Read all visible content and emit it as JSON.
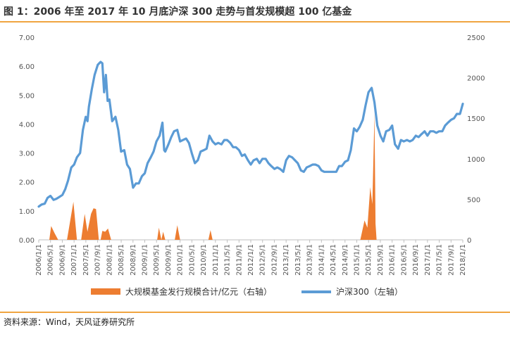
{
  "header": {
    "title": "图 1：2006 年至 2017 年 10 月底沪深 300 走势与首发规模超 100 亿基金"
  },
  "footer": {
    "source": "资料来源：Wind，天风证券研究所"
  },
  "colors": {
    "hs300": "#5b9bd5",
    "fund": "#ed7d31",
    "accent_rule": "#f0a540",
    "axis": "#bfbfbf"
  },
  "chart_data": {
    "type": "line",
    "title": "",
    "left_axis": {
      "ylim": [
        0,
        7
      ],
      "ticks": [
        "0.00",
        "1.00",
        "2.00",
        "3.00",
        "4.00",
        "5.00",
        "6.00",
        "7.00"
      ]
    },
    "right_axis": {
      "ylim": [
        0,
        2500
      ],
      "ticks": [
        "0",
        "500",
        "1000",
        "1500",
        "2000",
        "2500"
      ]
    },
    "x_range": [
      2006.0,
      2018.0
    ],
    "x_tick_labels": [
      "2006/1/1",
      "2006/5/1",
      "2006/9/1",
      "2007/1/1",
      "2007/5/1",
      "2007/9/1",
      "2008/1/1",
      "2008/5/1",
      "2008/9/1",
      "2009/1/1",
      "2009/5/1",
      "2009/9/1",
      "2010/1/1",
      "2010/5/1",
      "2010/9/1",
      "2011/1/1",
      "2011/5/1",
      "2011/9/1",
      "2012/1/1",
      "2012/5/1",
      "2012/9/1",
      "2013/1/1",
      "2013/5/1",
      "2013/9/1",
      "2014/1/1",
      "2014/5/1",
      "2014/9/1",
      "2015/1/1",
      "2015/5/1",
      "2015/9/1",
      "2016/1/1",
      "2016/5/1",
      "2016/9/1",
      "2017/1/1",
      "2017/5/1",
      "2017/9/1",
      "2018/1/1"
    ],
    "series": [
      {
        "name": "大规模基金发行规模合计/亿元（右轴）",
        "type": "area",
        "axis": "right",
        "points": [
          [
            2006.0,
            0
          ],
          [
            2006.3,
            0
          ],
          [
            2006.35,
            170
          ],
          [
            2006.45,
            80
          ],
          [
            2006.55,
            0
          ],
          [
            2006.8,
            0
          ],
          [
            2006.98,
            470
          ],
          [
            2007.08,
            0
          ],
          [
            2007.2,
            0
          ],
          [
            2007.3,
            320
          ],
          [
            2007.38,
            100
          ],
          [
            2007.48,
            320
          ],
          [
            2007.55,
            390
          ],
          [
            2007.62,
            380
          ],
          [
            2007.7,
            0
          ],
          [
            2007.75,
            0
          ],
          [
            2007.8,
            110
          ],
          [
            2007.88,
            100
          ],
          [
            2007.96,
            140
          ],
          [
            2008.05,
            0
          ],
          [
            2009.35,
            0
          ],
          [
            2009.4,
            150
          ],
          [
            2009.47,
            0
          ],
          [
            2009.52,
            100
          ],
          [
            2009.58,
            0
          ],
          [
            2009.85,
            0
          ],
          [
            2009.92,
            180
          ],
          [
            2010.0,
            0
          ],
          [
            2010.8,
            0
          ],
          [
            2010.86,
            120
          ],
          [
            2010.92,
            0
          ],
          [
            2015.1,
            0
          ],
          [
            2015.22,
            240
          ],
          [
            2015.3,
            150
          ],
          [
            2015.38,
            650
          ],
          [
            2015.44,
            440
          ],
          [
            2015.5,
            1560
          ],
          [
            2015.53,
            200
          ],
          [
            2015.56,
            0
          ],
          [
            2018.0,
            0
          ]
        ]
      },
      {
        "name": "沪深300（左轴）",
        "type": "line",
        "axis": "left",
        "points": [
          [
            2006.0,
            1.15
          ],
          [
            2006.08,
            1.22
          ],
          [
            2006.17,
            1.25
          ],
          [
            2006.25,
            1.45
          ],
          [
            2006.33,
            1.52
          ],
          [
            2006.42,
            1.38
          ],
          [
            2006.5,
            1.42
          ],
          [
            2006.58,
            1.48
          ],
          [
            2006.67,
            1.55
          ],
          [
            2006.75,
            1.75
          ],
          [
            2006.83,
            2.05
          ],
          [
            2006.92,
            2.5
          ],
          [
            2007.0,
            2.6
          ],
          [
            2007.08,
            2.85
          ],
          [
            2007.17,
            3.0
          ],
          [
            2007.25,
            3.8
          ],
          [
            2007.33,
            4.25
          ],
          [
            2007.38,
            4.1
          ],
          [
            2007.42,
            4.6
          ],
          [
            2007.5,
            5.2
          ],
          [
            2007.58,
            5.7
          ],
          [
            2007.67,
            6.05
          ],
          [
            2007.75,
            6.15
          ],
          [
            2007.8,
            6.1
          ],
          [
            2007.85,
            5.1
          ],
          [
            2007.9,
            5.7
          ],
          [
            2007.95,
            4.8
          ],
          [
            2008.0,
            4.85
          ],
          [
            2008.08,
            4.1
          ],
          [
            2008.17,
            4.25
          ],
          [
            2008.25,
            3.8
          ],
          [
            2008.33,
            3.05
          ],
          [
            2008.42,
            3.1
          ],
          [
            2008.5,
            2.6
          ],
          [
            2008.58,
            2.45
          ],
          [
            2008.67,
            1.8
          ],
          [
            2008.75,
            1.95
          ],
          [
            2008.83,
            1.95
          ],
          [
            2008.92,
            2.2
          ],
          [
            2009.0,
            2.3
          ],
          [
            2009.08,
            2.65
          ],
          [
            2009.17,
            2.85
          ],
          [
            2009.25,
            3.05
          ],
          [
            2009.33,
            3.4
          ],
          [
            2009.42,
            3.6
          ],
          [
            2009.5,
            4.05
          ],
          [
            2009.55,
            3.1
          ],
          [
            2009.58,
            3.05
          ],
          [
            2009.67,
            3.3
          ],
          [
            2009.75,
            3.55
          ],
          [
            2009.83,
            3.75
          ],
          [
            2009.92,
            3.8
          ],
          [
            2010.0,
            3.4
          ],
          [
            2010.08,
            3.45
          ],
          [
            2010.17,
            3.5
          ],
          [
            2010.25,
            3.35
          ],
          [
            2010.33,
            3.0
          ],
          [
            2010.42,
            2.65
          ],
          [
            2010.5,
            2.75
          ],
          [
            2010.58,
            3.05
          ],
          [
            2010.67,
            3.1
          ],
          [
            2010.75,
            3.15
          ],
          [
            2010.83,
            3.6
          ],
          [
            2010.92,
            3.4
          ],
          [
            2011.0,
            3.3
          ],
          [
            2011.08,
            3.35
          ],
          [
            2011.17,
            3.3
          ],
          [
            2011.25,
            3.45
          ],
          [
            2011.33,
            3.45
          ],
          [
            2011.42,
            3.35
          ],
          [
            2011.5,
            3.2
          ],
          [
            2011.58,
            3.2
          ],
          [
            2011.67,
            3.1
          ],
          [
            2011.75,
            2.9
          ],
          [
            2011.83,
            2.95
          ],
          [
            2011.92,
            2.75
          ],
          [
            2012.0,
            2.6
          ],
          [
            2012.08,
            2.75
          ],
          [
            2012.17,
            2.8
          ],
          [
            2012.25,
            2.65
          ],
          [
            2012.33,
            2.8
          ],
          [
            2012.42,
            2.8
          ],
          [
            2012.5,
            2.65
          ],
          [
            2012.58,
            2.55
          ],
          [
            2012.67,
            2.45
          ],
          [
            2012.75,
            2.5
          ],
          [
            2012.83,
            2.45
          ],
          [
            2012.92,
            2.35
          ],
          [
            2013.0,
            2.75
          ],
          [
            2013.08,
            2.9
          ],
          [
            2013.17,
            2.85
          ],
          [
            2013.25,
            2.75
          ],
          [
            2013.33,
            2.65
          ],
          [
            2013.42,
            2.4
          ],
          [
            2013.5,
            2.35
          ],
          [
            2013.58,
            2.5
          ],
          [
            2013.67,
            2.55
          ],
          [
            2013.75,
            2.6
          ],
          [
            2013.83,
            2.6
          ],
          [
            2013.92,
            2.55
          ],
          [
            2014.0,
            2.4
          ],
          [
            2014.08,
            2.35
          ],
          [
            2014.17,
            2.35
          ],
          [
            2014.25,
            2.35
          ],
          [
            2014.33,
            2.35
          ],
          [
            2014.42,
            2.35
          ],
          [
            2014.5,
            2.55
          ],
          [
            2014.58,
            2.55
          ],
          [
            2014.67,
            2.7
          ],
          [
            2014.75,
            2.75
          ],
          [
            2014.83,
            3.1
          ],
          [
            2014.92,
            3.85
          ],
          [
            2015.0,
            3.75
          ],
          [
            2015.08,
            3.9
          ],
          [
            2015.17,
            4.15
          ],
          [
            2015.25,
            4.65
          ],
          [
            2015.33,
            5.1
          ],
          [
            2015.42,
            5.25
          ],
          [
            2015.5,
            4.75
          ],
          [
            2015.58,
            3.95
          ],
          [
            2015.67,
            3.6
          ],
          [
            2015.75,
            3.4
          ],
          [
            2015.83,
            3.75
          ],
          [
            2015.92,
            3.8
          ],
          [
            2016.0,
            3.95
          ],
          [
            2016.08,
            3.3
          ],
          [
            2016.17,
            3.15
          ],
          [
            2016.25,
            3.45
          ],
          [
            2016.33,
            3.4
          ],
          [
            2016.42,
            3.45
          ],
          [
            2016.5,
            3.4
          ],
          [
            2016.58,
            3.45
          ],
          [
            2016.67,
            3.6
          ],
          [
            2016.75,
            3.55
          ],
          [
            2016.83,
            3.65
          ],
          [
            2016.92,
            3.75
          ],
          [
            2017.0,
            3.6
          ],
          [
            2017.08,
            3.75
          ],
          [
            2017.17,
            3.75
          ],
          [
            2017.25,
            3.7
          ],
          [
            2017.33,
            3.75
          ],
          [
            2017.42,
            3.75
          ],
          [
            2017.5,
            3.95
          ],
          [
            2017.58,
            4.05
          ],
          [
            2017.67,
            4.15
          ],
          [
            2017.75,
            4.2
          ],
          [
            2017.83,
            4.35
          ],
          [
            2017.92,
            4.35
          ],
          [
            2018.0,
            4.7
          ]
        ]
      }
    ],
    "legend": {
      "position": "bottom",
      "items": [
        {
          "label": "大规模基金发行规模合计/亿元（右轴）",
          "color": "#ed7d31",
          "shape": "rect"
        },
        {
          "label": "沪深300（左轴）",
          "color": "#5b9bd5",
          "shape": "line"
        }
      ]
    },
    "grid": false
  }
}
